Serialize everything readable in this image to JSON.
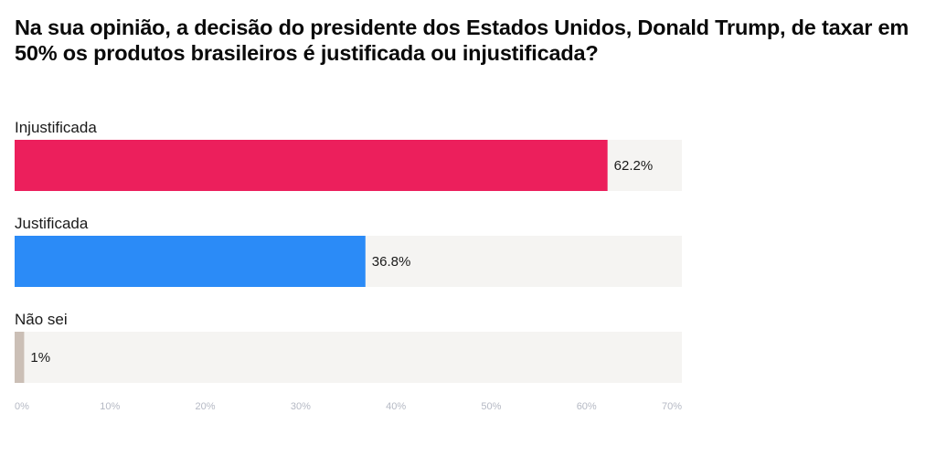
{
  "chart_data": {
    "type": "bar",
    "orientation": "horizontal",
    "title": "Na sua opinião, a decisão do presidente dos Estados Unidos, Donald Trump, de taxar em 50% os produtos brasileiros é justificada ou injustificada?",
    "categories": [
      "Injustificada",
      "Justificada",
      "Não sei"
    ],
    "values": [
      62.2,
      36.8,
      1
    ],
    "value_labels": [
      "62.2%",
      "36.8%",
      "1%"
    ],
    "bar_colors": [
      "#ec1f5c",
      "#2b8bf7",
      "#cbbfb6"
    ],
    "track_color": "#f5f4f2",
    "xlim": [
      0,
      70
    ],
    "x_ticks": [
      0,
      10,
      20,
      30,
      40,
      50,
      60,
      70
    ],
    "x_tick_labels": [
      "0%",
      "10%",
      "20%",
      "30%",
      "40%",
      "50%",
      "60%",
      "70%"
    ],
    "grid": false,
    "legend": "none"
  }
}
